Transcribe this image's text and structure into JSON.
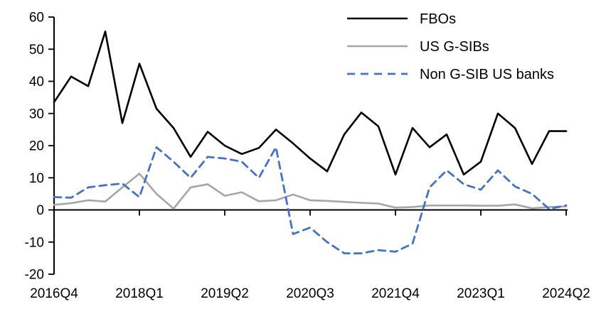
{
  "chart_data": {
    "type": "line",
    "x_quarters": [
      "2016Q4",
      "2017Q1",
      "2017Q2",
      "2017Q3",
      "2017Q4",
      "2018Q1",
      "2018Q2",
      "2018Q3",
      "2018Q4",
      "2019Q1",
      "2019Q2",
      "2019Q3",
      "2019Q4",
      "2020Q1",
      "2020Q2",
      "2020Q3",
      "2020Q4",
      "2021Q1",
      "2021Q2",
      "2021Q3",
      "2021Q4",
      "2022Q1",
      "2022Q2",
      "2022Q3",
      "2022Q4",
      "2023Q1",
      "2023Q2",
      "2023Q3",
      "2023Q4",
      "2024Q1",
      "2024Q2"
    ],
    "x_tick_labels": [
      "2016Q4",
      "2018Q1",
      "2019Q2",
      "2020Q3",
      "2021Q4",
      "2023Q1",
      "2024Q2"
    ],
    "x_tick_indices": [
      0,
      5,
      10,
      15,
      20,
      25,
      30
    ],
    "y_tick_labels": [
      "60",
      "50",
      "40",
      "30",
      "20",
      "10",
      "0",
      "-10",
      "-20"
    ],
    "y_tick_values": [
      60,
      50,
      40,
      30,
      20,
      10,
      0,
      -10,
      -20
    ],
    "ylim": [
      -20,
      60
    ],
    "grid": "off",
    "legend_position": "top-right",
    "series": [
      {
        "name": "FBOs",
        "color": "#000000",
        "line_style": "solid",
        "values": [
          33.5,
          41.5,
          38.5,
          55.5,
          27.0,
          45.5,
          31.5,
          25.5,
          16.5,
          24.3,
          20.0,
          17.4,
          19.3,
          25.0,
          20.7,
          16.0,
          12.0,
          23.5,
          30.3,
          26.0,
          11.0,
          25.5,
          19.5,
          23.5,
          11.0,
          15.0,
          30.0,
          25.5,
          14.3,
          24.5,
          24.5
        ]
      },
      {
        "name": "US G-SIBs",
        "color": "#a6a6a6",
        "line_style": "solid",
        "values": [
          1.6,
          2.1,
          3.0,
          2.6,
          7.0,
          11.3,
          5.0,
          0.4,
          7.0,
          8.0,
          4.4,
          5.5,
          2.7,
          3.0,
          4.8,
          3.0,
          2.8,
          2.5,
          2.2,
          2.0,
          0.7,
          0.9,
          1.4,
          1.4,
          1.4,
          1.3,
          1.3,
          1.7,
          0.5,
          0.9,
          1.1
        ]
      },
      {
        "name": "Non G-SIB US banks",
        "color": "#4472c4",
        "line_style": "dashed",
        "values": [
          4.0,
          3.8,
          7.0,
          7.7,
          8.2,
          4.0,
          19.5,
          15.0,
          10.0,
          16.5,
          16.0,
          15.0,
          10.0,
          19.5,
          -7.5,
          -5.5,
          -10.0,
          -13.5,
          -13.5,
          -12.5,
          -13.0,
          -10.5,
          7.0,
          12.3,
          8.0,
          6.3,
          12.3,
          7.3,
          5.0,
          0.3,
          1.4
        ]
      }
    ]
  }
}
